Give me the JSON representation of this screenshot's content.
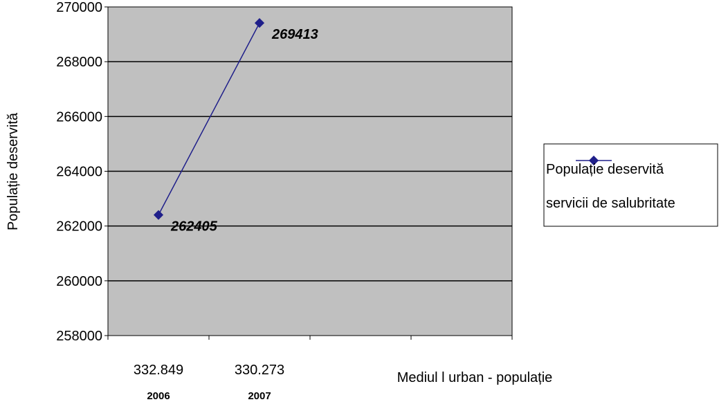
{
  "chart_data": {
    "type": "line",
    "categories": [
      "332.849",
      "330.273"
    ],
    "category_years": [
      "2006",
      "2007"
    ],
    "series": [
      {
        "name": "Populație deservită servicii de salubritate",
        "legend_lines": [
          "Populație deservită",
          "servicii de salubritate"
        ],
        "values": [
          262405,
          269413
        ],
        "data_labels": [
          "262405",
          "269413"
        ],
        "color": "#1f1f8a"
      }
    ],
    "ylabel": "Populație deservită",
    "xlabel": "Mediul l urban - populație",
    "ylim": [
      258000,
      270000
    ],
    "y_ticks": [
      "258000",
      "260000",
      "262000",
      "264000",
      "266000",
      "268000",
      "270000"
    ],
    "x_slots": 4,
    "plot_background": "#c0c0c0",
    "grid": true,
    "legend_position": "right"
  }
}
